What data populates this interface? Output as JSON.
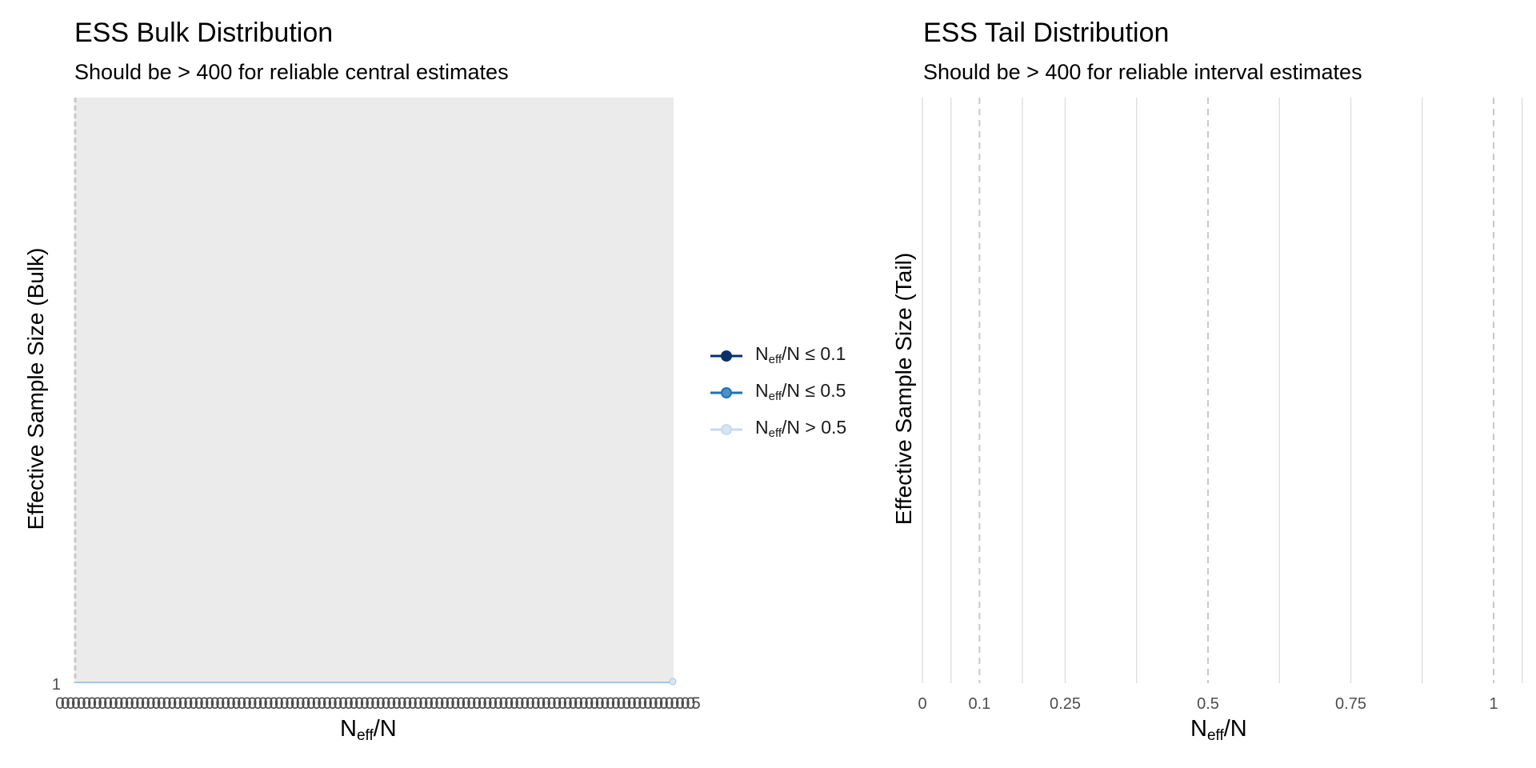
{
  "left_panel": {
    "title": "ESS Bulk Distribution",
    "subtitle": "Should be > 400 for reliable central estimates",
    "ylabel": "Effective Sample Size (Bulk)",
    "xlabel_main": "N",
    "xlabel_sub": "eff",
    "xlabel_tail": "/N"
  },
  "right_panel": {
    "title": "ESS Tail Distribution",
    "subtitle": "Should be > 400 for reliable interval estimates",
    "ylabel": "Effective Sample Size (Tail)",
    "xlabel_main": "N",
    "xlabel_sub": "eff",
    "xlabel_tail": "/N"
  },
  "legend": {
    "items": [
      {
        "main": "N",
        "sub": "eff",
        "rest": "/N ≤ 0.1",
        "color": "#08306b",
        "fill": "#08306b"
      },
      {
        "main": "N",
        "sub": "eff",
        "rest": "/N ≤ 0.5",
        "color": "#2171b5",
        "fill": "#4a90c4"
      },
      {
        "main": "N",
        "sub": "eff",
        "rest": "/N > 0.5",
        "color": "#c6dbef",
        "fill": "#d6e6f4"
      }
    ]
  },
  "colors": {
    "panel_bg": "#ebebeb",
    "grid": "#e0e0e0",
    "ref_line": "#c8c8c8",
    "series_line": "#9ecae1",
    "tick_text": "#4d4d4d"
  },
  "chart_data": [
    {
      "type": "bar",
      "title": "ESS Bulk Distribution",
      "subtitle": "Should be > 400 for reliable central estimates",
      "xlabel": "Neff/N",
      "ylabel": "Effective Sample Size (Bulk)",
      "y_ticks": [
        "1"
      ],
      "x_tick_labels_overlapping": true,
      "x_tick_first": "0",
      "x_tick_last": "5",
      "series_value": 1,
      "background": "grey"
    },
    {
      "type": "bar",
      "title": "ESS Tail Distribution",
      "subtitle": "Should be > 400 for reliable interval estimates",
      "xlabel": "Neff/N",
      "ylabel": "Effective Sample Size (Tail)",
      "xlim": [
        0,
        1.05
      ],
      "x_ticks": [
        0,
        0.1,
        0.25,
        0.5,
        0.75,
        1
      ],
      "x_tick_labels": [
        "0",
        "0.1",
        "0.25",
        "0.5",
        "0.75",
        "1"
      ],
      "minor_grid": [
        0.05,
        0.175,
        0.375,
        0.625,
        0.875
      ],
      "reference_lines": [
        0.1,
        0.5,
        1
      ],
      "series": []
    }
  ]
}
